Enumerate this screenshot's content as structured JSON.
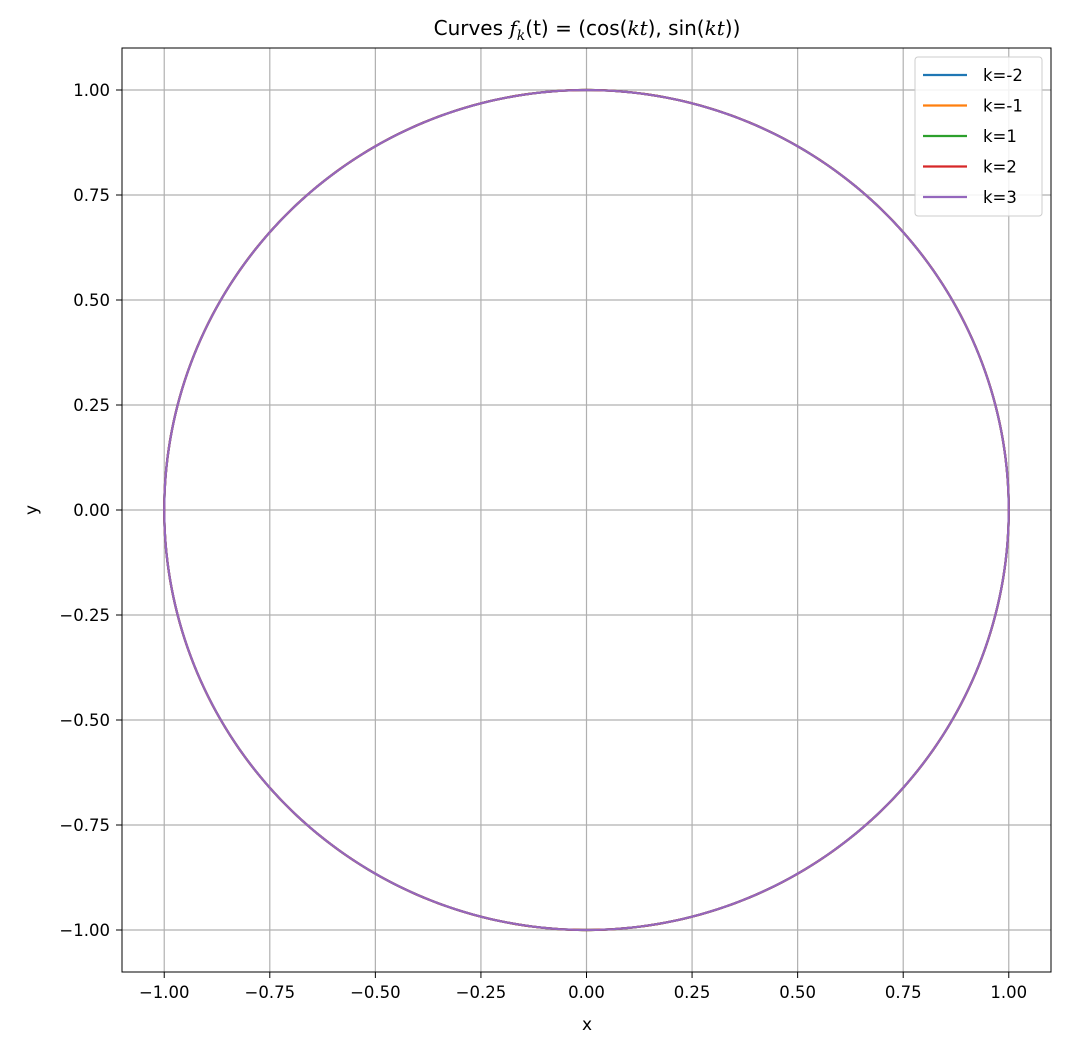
{
  "chart_data": {
    "type": "line",
    "title": {
      "prefix": "Curves ",
      "func": "f",
      "sub": "k",
      "arg": "(t)",
      "rhs_1": " = (cos(",
      "kt1": "kt",
      "rhs_2": "), sin(",
      "kt2": "kt",
      "rhs_3": "))"
    },
    "xlabel": "x",
    "ylabel": "y",
    "xlim": [
      -1.1,
      1.1
    ],
    "ylim": [
      -1.1,
      1.1
    ],
    "xticks": [
      -1.0,
      -0.75,
      -0.5,
      -0.25,
      0.0,
      0.25,
      0.5,
      0.75,
      1.0
    ],
    "yticks": [
      -1.0,
      -0.75,
      -0.5,
      -0.25,
      0.0,
      0.25,
      0.5,
      0.75,
      1.0
    ],
    "xtick_labels": [
      "−1.00",
      "−0.75",
      "−0.50",
      "−0.25",
      "0.00",
      "0.25",
      "0.50",
      "0.75",
      "1.00"
    ],
    "ytick_labels": [
      "−1.00",
      "−0.75",
      "−0.50",
      "−0.25",
      "0.00",
      "0.25",
      "0.50",
      "0.75",
      "1.00"
    ],
    "grid": true,
    "legend_position": "top-right",
    "series": [
      {
        "name": "k=-2",
        "k": -2,
        "color": "#1f77b4"
      },
      {
        "name": "k=-1",
        "k": -1,
        "color": "#ff7f0e"
      },
      {
        "name": "k=1",
        "k": 1,
        "color": "#2ca02c"
      },
      {
        "name": "k=2",
        "k": 2,
        "color": "#d62728"
      },
      {
        "name": "k=3",
        "k": 3,
        "color": "#9467bd"
      }
    ],
    "t_range": [
      0,
      6.283185307179586
    ]
  }
}
